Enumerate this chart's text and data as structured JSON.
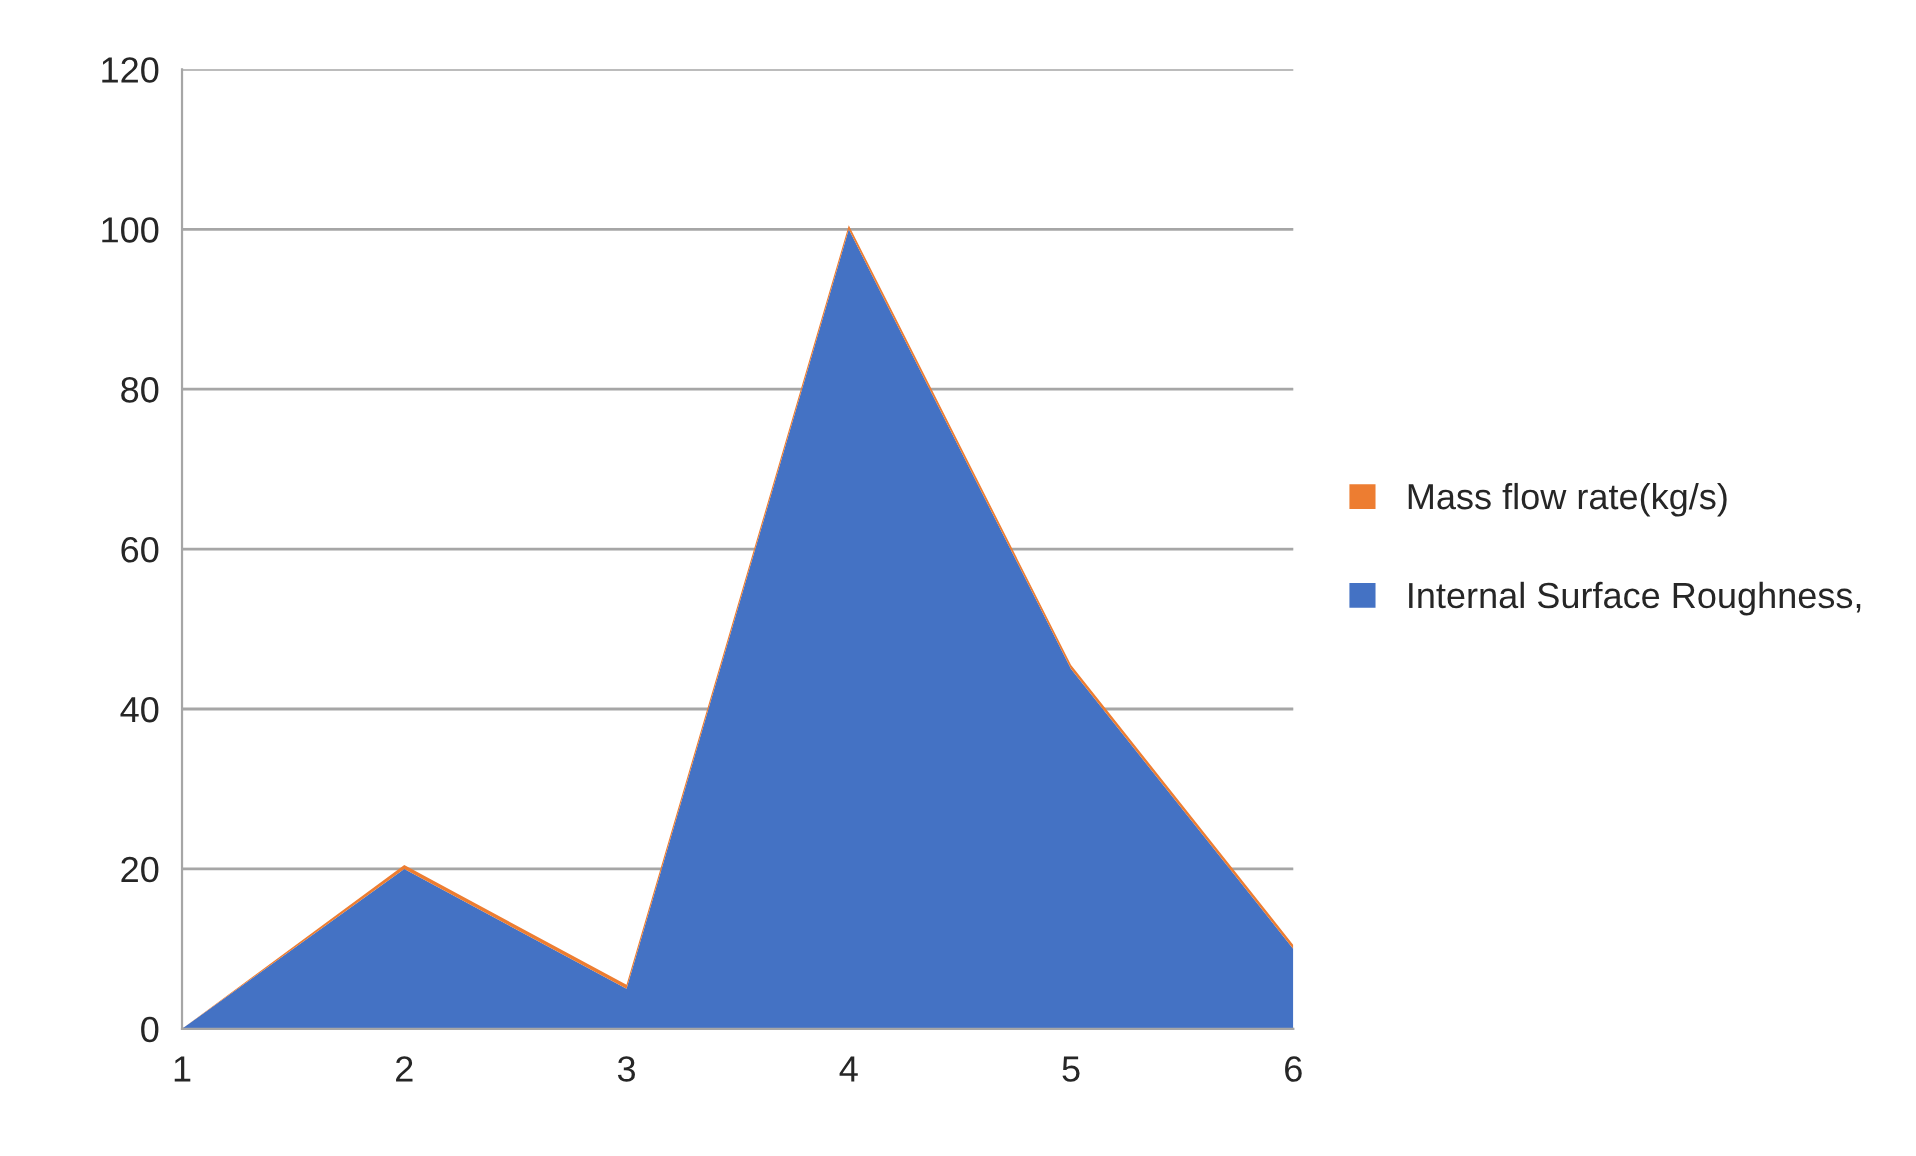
{
  "chart_data": {
    "type": "area",
    "stacked": true,
    "x": [
      1,
      2,
      3,
      4,
      5,
      6
    ],
    "series": [
      {
        "name": "Internal Surface Roughness,",
        "color": "#4472c4",
        "values": [
          0,
          20,
          5,
          100,
          45,
          10
        ]
      },
      {
        "name": "Mass flow rate(kg/s)",
        "color": "#ed7d31",
        "values": [
          0,
          0.5,
          0.5,
          0.5,
          0.5,
          0.5
        ]
      }
    ],
    "xlim": [
      1,
      6
    ],
    "xticks": [
      1,
      2,
      3,
      4,
      5,
      6
    ],
    "ylim": [
      0,
      120
    ],
    "yticks": [
      0,
      20,
      40,
      60,
      80,
      100,
      120
    ],
    "grid": "y",
    "legend": "right"
  }
}
